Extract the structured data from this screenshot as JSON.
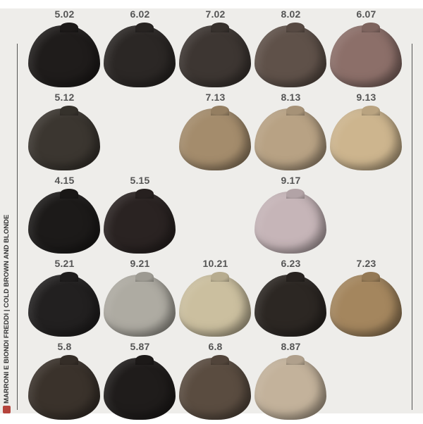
{
  "side_caption": "MARRONI E BIONDI FREDDI | COLD BROWN AND BLONDE",
  "rows": [
    [
      {
        "code": "5.02",
        "color": "#1f1c1b"
      },
      {
        "code": "6.02",
        "color": "#2b2725"
      },
      {
        "code": "7.02",
        "color": "#3d3632"
      },
      {
        "code": "8.02",
        "color": "#5f5149"
      },
      {
        "code": "6.07",
        "color": "#8c6f69"
      }
    ],
    [
      {
        "code": "5.12",
        "color": "#3b3630"
      },
      null,
      {
        "code": "7.13",
        "color": "#a48c6c"
      },
      {
        "code": "8.13",
        "color": "#b8a284"
      },
      {
        "code": "9.13",
        "color": "#cdb58e"
      }
    ],
    [
      {
        "code": "4.15",
        "color": "#1c1a19"
      },
      {
        "code": "5.15",
        "color": "#2a2322"
      },
      null,
      {
        "code": "9.17",
        "color": "#c6b5b8"
      },
      null
    ],
    [
      {
        "code": "5.21",
        "color": "#222020"
      },
      {
        "code": "9.21",
        "color": "#aeaba2"
      },
      {
        "code": "10.21",
        "color": "#cbbf9f"
      },
      {
        "code": "6.23",
        "color": "#2c2723"
      },
      {
        "code": "7.23",
        "color": "#a4865e"
      }
    ],
    [
      {
        "code": "5.8",
        "color": "#3a322b"
      },
      {
        "code": "5.87",
        "color": "#1f1c1b"
      },
      {
        "code": "6.8",
        "color": "#5a4c40"
      },
      {
        "code": "8.87",
        "color": "#c3b29b"
      },
      null
    ]
  ]
}
